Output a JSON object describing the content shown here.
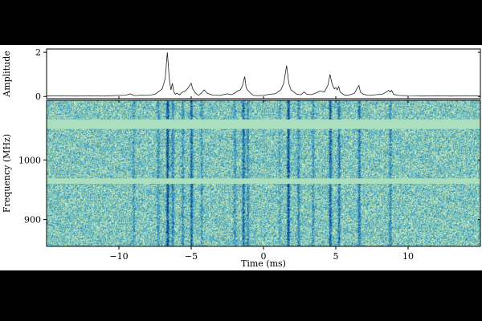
{
  "chart_data": [
    {
      "type": "line",
      "title": "",
      "xlabel": "",
      "ylabel": "Amplitude",
      "xlim": [
        -15,
        15
      ],
      "ylim": [
        -0.1,
        2.15
      ],
      "yticks": [
        {
          "value": 0,
          "label": "0"
        },
        {
          "value": 2,
          "label": "2"
        }
      ],
      "grid": false,
      "series": [
        {
          "x": [
            -15,
            -14,
            -13,
            -12,
            -11,
            -10,
            -9.5,
            -9.2,
            -9.0,
            -8.8,
            -8.5,
            -8.0,
            -7.5,
            -7.2,
            -7.0,
            -6.8,
            -6.65,
            -6.5,
            -6.4,
            -6.3,
            -6.2,
            -6.1,
            -6.0,
            -5.8,
            -5.6,
            -5.4,
            -5.2,
            -5.0,
            -4.9,
            -4.7,
            -4.5,
            -4.3,
            -4.1,
            -3.9,
            -3.5,
            -3.0,
            -2.5,
            -2.2,
            -2.0,
            -1.8,
            -1.6,
            -1.45,
            -1.3,
            -1.2,
            -1.1,
            -0.9,
            -0.7,
            -0.4,
            0.0,
            0.4,
            0.8,
            1.0,
            1.2,
            1.4,
            1.6,
            1.75,
            1.9,
            2.1,
            2.3,
            2.6,
            2.8,
            3.0,
            3.3,
            3.6,
            3.9,
            4.2,
            4.45,
            4.6,
            4.75,
            4.9,
            5.0,
            5.1,
            5.2,
            5.3,
            5.5,
            5.7,
            6.0,
            6.3,
            6.5,
            6.6,
            6.7,
            6.9,
            7.3,
            7.8,
            8.2,
            8.5,
            8.65,
            8.75,
            8.85,
            9.0,
            9.3,
            10,
            11,
            12,
            13,
            14,
            15
          ],
          "values": [
            0.02,
            0.03,
            0.02,
            0.03,
            0.02,
            0.05,
            0.06,
            0.12,
            0.05,
            0.04,
            0.06,
            0.05,
            0.1,
            0.25,
            0.35,
            0.8,
            2.0,
            0.7,
            0.3,
            0.6,
            0.2,
            0.1,
            0.15,
            0.08,
            0.2,
            0.25,
            0.4,
            0.6,
            0.35,
            0.15,
            0.05,
            0.15,
            0.3,
            0.15,
            0.06,
            0.05,
            0.12,
            0.08,
            0.15,
            0.25,
            0.3,
            0.5,
            0.9,
            0.4,
            0.3,
            0.15,
            0.05,
            0.04,
            0.05,
            0.1,
            0.12,
            0.2,
            0.3,
            0.6,
            1.4,
            0.6,
            0.3,
            0.2,
            0.1,
            0.08,
            0.2,
            0.1,
            0.08,
            0.15,
            0.25,
            0.2,
            0.5,
            1.0,
            0.55,
            0.35,
            0.4,
            0.3,
            0.45,
            0.2,
            0.1,
            0.05,
            0.08,
            0.15,
            0.4,
            0.5,
            0.2,
            0.1,
            0.05,
            0.08,
            0.1,
            0.2,
            0.28,
            0.2,
            0.28,
            0.1,
            0.05,
            0.03,
            0.02,
            0.03,
            0.02,
            0.03,
            0.02
          ],
          "color": "#222222"
        }
      ]
    },
    {
      "type": "heatmap",
      "title": "",
      "xlabel": "Time (ms)",
      "ylabel": "Frequency (MHz)",
      "xlim": [
        -15,
        15
      ],
      "ylim": [
        855,
        1100
      ],
      "xticks": [
        {
          "value": -10,
          "label": "−10"
        },
        {
          "value": -5,
          "label": "−5"
        },
        {
          "value": 0,
          "label": "0"
        },
        {
          "value": 5,
          "label": "5"
        },
        {
          "value": 10,
          "label": "10"
        }
      ],
      "yticks": [
        {
          "value": 900,
          "label": "900"
        },
        {
          "value": 1000,
          "label": "1000"
        }
      ],
      "colormap": [
        "#f2f9c8",
        "#a8dbb4",
        "#4aa8c2",
        "#1f6fb0",
        "#08306b"
      ],
      "masked_bands": [
        {
          "from": 1052,
          "to": 1068
        },
        {
          "from": 960,
          "to": 969
        }
      ],
      "masked_color": "#acdfbd",
      "bursts": [
        {
          "time": -9.0,
          "strength": 0.35
        },
        {
          "time": -7.3,
          "strength": 0.4
        },
        {
          "time": -6.65,
          "strength": 1.0
        },
        {
          "time": -6.3,
          "strength": 0.55
        },
        {
          "time": -5.6,
          "strength": 0.45
        },
        {
          "time": -5.0,
          "strength": 0.75
        },
        {
          "time": -4.3,
          "strength": 0.35
        },
        {
          "time": -2.0,
          "strength": 0.4
        },
        {
          "time": -1.4,
          "strength": 0.75
        },
        {
          "time": -1.1,
          "strength": 0.5
        },
        {
          "time": 1.1,
          "strength": 0.3
        },
        {
          "time": 1.7,
          "strength": 1.0
        },
        {
          "time": 2.4,
          "strength": 0.5
        },
        {
          "time": 3.4,
          "strength": 0.4
        },
        {
          "time": 4.6,
          "strength": 0.85
        },
        {
          "time": 5.2,
          "strength": 0.6
        },
        {
          "time": 6.6,
          "strength": 0.6
        },
        {
          "time": 8.75,
          "strength": 0.45
        }
      ]
    }
  ]
}
